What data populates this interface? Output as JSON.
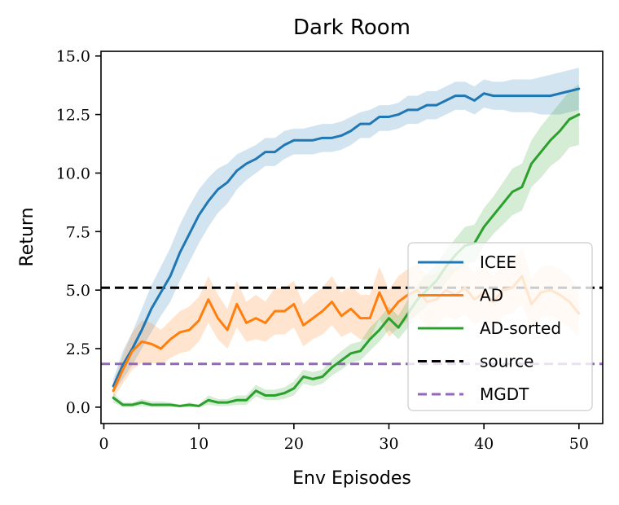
{
  "chart_data": {
    "type": "line",
    "title": "Dark Room",
    "xlabel": "Env Episodes",
    "ylabel": "Return",
    "xlim": [
      -0.3,
      52.5
    ],
    "ylim": [
      -0.7,
      15.2
    ],
    "xticks": [
      0,
      10,
      20,
      30,
      40,
      50
    ],
    "xtick_labels": [
      "0",
      "10",
      "20",
      "30",
      "40",
      "50"
    ],
    "yticks": [
      0.0,
      2.5,
      5.0,
      7.5,
      10.0,
      12.5,
      15.0
    ],
    "ytick_labels": [
      "0.0",
      "2.5",
      "5.0",
      "7.5",
      "10.0",
      "12.5",
      "15.0"
    ],
    "grid": false,
    "legend_position": "center-right",
    "series": [
      {
        "name": "ICEE",
        "color": "#1f77b4",
        "x": [
          1,
          2,
          3,
          4,
          5,
          6,
          7,
          8,
          9,
          10,
          11,
          12,
          13,
          14,
          15,
          16,
          17,
          18,
          19,
          20,
          21,
          22,
          23,
          24,
          25,
          26,
          27,
          28,
          29,
          30,
          31,
          32,
          33,
          34,
          35,
          36,
          37,
          38,
          39,
          40,
          41,
          42,
          43,
          44,
          45,
          46,
          47,
          48,
          49,
          50
        ],
        "y": [
          0.9,
          1.8,
          2.5,
          3.3,
          4.2,
          4.9,
          5.6,
          6.6,
          7.4,
          8.2,
          8.8,
          9.3,
          9.6,
          10.1,
          10.4,
          10.6,
          10.9,
          10.9,
          11.2,
          11.4,
          11.4,
          11.4,
          11.5,
          11.5,
          11.6,
          11.8,
          12.1,
          12.1,
          12.4,
          12.4,
          12.5,
          12.7,
          12.7,
          12.9,
          12.9,
          13.1,
          13.3,
          13.3,
          13.1,
          13.4,
          13.3,
          13.3,
          13.3,
          13.3,
          13.3,
          13.3,
          13.3,
          13.4,
          13.5,
          13.6
        ],
        "lower": [
          0.6,
          1.2,
          1.8,
          2.5,
          3.2,
          3.9,
          4.5,
          5.4,
          6.2,
          7.0,
          7.7,
          8.3,
          8.7,
          9.3,
          9.7,
          10.0,
          10.3,
          10.3,
          10.6,
          10.8,
          10.8,
          10.8,
          10.9,
          10.9,
          11.0,
          11.2,
          11.5,
          11.5,
          11.8,
          11.8,
          11.9,
          12.1,
          12.1,
          12.3,
          12.3,
          12.5,
          12.7,
          12.7,
          12.5,
          12.8,
          12.7,
          12.7,
          12.6,
          12.6,
          12.6,
          12.5,
          12.5,
          12.5,
          12.6,
          12.7
        ],
        "upper": [
          1.2,
          2.4,
          3.2,
          4.2,
          5.2,
          6.0,
          6.8,
          7.8,
          8.6,
          9.3,
          9.8,
          10.2,
          10.4,
          10.8,
          11.0,
          11.2,
          11.5,
          11.5,
          11.8,
          11.9,
          11.9,
          12.0,
          12.1,
          12.1,
          12.2,
          12.4,
          12.6,
          12.7,
          12.9,
          12.9,
          13.0,
          13.3,
          13.3,
          13.5,
          13.5,
          13.7,
          13.9,
          13.9,
          13.7,
          14.0,
          13.9,
          13.9,
          14.0,
          14.0,
          14.0,
          14.1,
          14.2,
          14.3,
          14.4,
          14.5
        ]
      },
      {
        "name": "AD",
        "color": "#ff7f0e",
        "x": [
          1,
          2,
          3,
          4,
          5,
          6,
          7,
          8,
          9,
          10,
          11,
          12,
          13,
          14,
          15,
          16,
          17,
          18,
          19,
          20,
          21,
          22,
          23,
          24,
          25,
          26,
          27,
          28,
          29,
          30,
          31,
          32,
          33,
          34,
          35,
          36,
          37,
          38,
          39,
          40,
          41,
          42,
          43,
          44,
          45,
          46,
          47,
          48,
          49,
          50
        ],
        "y": [
          0.7,
          1.6,
          2.4,
          2.8,
          2.7,
          2.5,
          2.9,
          3.2,
          3.3,
          3.7,
          4.6,
          3.8,
          3.3,
          4.4,
          3.6,
          3.8,
          3.6,
          4.1,
          4.1,
          4.4,
          3.5,
          3.8,
          4.1,
          4.5,
          3.9,
          4.2,
          3.8,
          3.8,
          4.9,
          4.0,
          4.5,
          4.8,
          5.0,
          4.5,
          4.6,
          5.0,
          4.8,
          5.1,
          4.6,
          4.9,
          4.5,
          5.0,
          5.1,
          5.6,
          4.4,
          4.9,
          5.0,
          4.8,
          4.5,
          4.0
        ],
        "lower": [
          0.4,
          1.0,
          1.6,
          1.9,
          1.9,
          1.8,
          2.1,
          2.3,
          2.4,
          2.8,
          3.6,
          2.9,
          2.5,
          3.4,
          2.8,
          2.9,
          2.8,
          3.1,
          3.1,
          3.4,
          2.6,
          2.9,
          3.1,
          3.5,
          3.0,
          3.2,
          2.9,
          2.9,
          3.8,
          3.0,
          3.4,
          3.7,
          3.9,
          3.4,
          3.5,
          3.9,
          3.7,
          4.0,
          3.5,
          3.8,
          3.4,
          3.9,
          4.0,
          4.4,
          3.3,
          3.8,
          3.9,
          3.7,
          3.4,
          3.0
        ],
        "upper": [
          1.0,
          2.2,
          3.2,
          3.7,
          3.6,
          3.3,
          3.7,
          4.1,
          4.3,
          4.7,
          5.6,
          4.8,
          4.2,
          5.4,
          4.5,
          4.8,
          4.5,
          5.1,
          5.1,
          5.4,
          4.4,
          4.8,
          5.1,
          5.6,
          4.9,
          5.2,
          4.8,
          4.8,
          6.0,
          5.0,
          5.6,
          5.9,
          6.1,
          5.6,
          5.7,
          6.1,
          5.9,
          6.2,
          5.7,
          6.0,
          5.6,
          6.1,
          6.2,
          6.8,
          5.5,
          6.0,
          6.1,
          5.9,
          5.6,
          5.0
        ]
      },
      {
        "name": "AD-sorted",
        "color": "#2ca02c",
        "x": [
          1,
          2,
          3,
          4,
          5,
          6,
          7,
          8,
          9,
          10,
          11,
          12,
          13,
          14,
          15,
          16,
          17,
          18,
          19,
          20,
          21,
          22,
          23,
          24,
          25,
          26,
          27,
          28,
          29,
          30,
          31,
          32,
          33,
          34,
          35,
          36,
          37,
          38,
          39,
          40,
          41,
          42,
          43,
          44,
          45,
          46,
          47,
          48,
          49,
          50
        ],
        "y": [
          0.4,
          0.1,
          0.1,
          0.2,
          0.1,
          0.1,
          0.1,
          0.05,
          0.1,
          0.05,
          0.3,
          0.2,
          0.2,
          0.3,
          0.3,
          0.7,
          0.5,
          0.5,
          0.6,
          0.8,
          1.3,
          1.2,
          1.3,
          1.7,
          2.0,
          2.3,
          2.4,
          2.9,
          3.3,
          3.8,
          3.4,
          4.0,
          4.6,
          5.0,
          5.4,
          6.0,
          6.5,
          6.9,
          7.0,
          7.7,
          8.2,
          8.7,
          9.2,
          9.4,
          10.4,
          10.9,
          11.4,
          11.8,
          12.3,
          12.5
        ],
        "lower": [
          0.2,
          0.0,
          0.0,
          0.05,
          0.0,
          0.0,
          0.0,
          0.0,
          0.0,
          0.0,
          0.1,
          0.05,
          0.05,
          0.1,
          0.1,
          0.45,
          0.3,
          0.3,
          0.35,
          0.5,
          1.0,
          0.9,
          1.0,
          1.35,
          1.6,
          1.9,
          2.0,
          2.4,
          2.8,
          3.3,
          2.9,
          3.4,
          4.0,
          4.3,
          4.7,
          5.3,
          5.8,
          6.1,
          6.2,
          6.9,
          7.4,
          7.8,
          8.2,
          8.4,
          9.4,
          9.8,
          10.3,
          10.6,
          11.1,
          11.2
        ],
        "upper": [
          0.6,
          0.2,
          0.2,
          0.35,
          0.25,
          0.25,
          0.2,
          0.1,
          0.2,
          0.1,
          0.5,
          0.35,
          0.35,
          0.5,
          0.5,
          0.95,
          0.75,
          0.75,
          0.85,
          1.1,
          1.6,
          1.5,
          1.6,
          2.05,
          2.4,
          2.7,
          2.8,
          3.4,
          3.8,
          4.3,
          3.9,
          4.6,
          5.2,
          5.7,
          6.1,
          6.7,
          7.2,
          7.7,
          7.8,
          8.5,
          9.0,
          9.6,
          10.2,
          10.4,
          11.4,
          12.0,
          12.5,
          13.0,
          13.5,
          13.8
        ]
      },
      {
        "name": "source",
        "color": "#000000",
        "style": "dashed",
        "constant": 5.1
      },
      {
        "name": "MGDT",
        "color": "#9467bd",
        "style": "dashed",
        "constant": 1.85
      }
    ]
  }
}
